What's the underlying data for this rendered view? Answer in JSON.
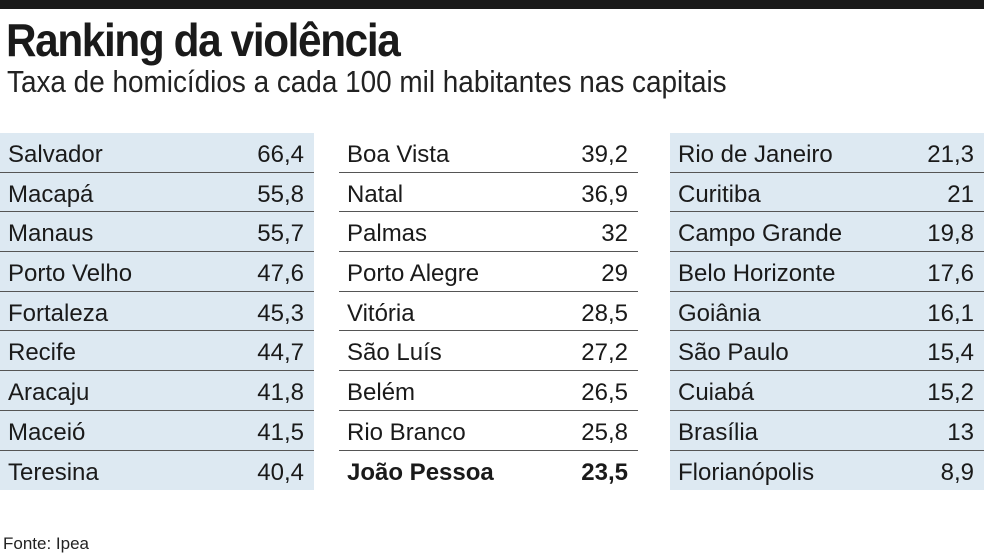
{
  "title": "Ranking da violência",
  "subtitle": "Taxa de homicídios a cada 100 mil habitantes nas capitais",
  "source": "Fonte: Ipea",
  "colors": {
    "shade": "#dde9f2",
    "rule": "#555555",
    "topbar": "#1a1a1a"
  },
  "chart_data": {
    "type": "table",
    "title": "Ranking da violência",
    "subtitle": "Taxa de homicídios a cada 100 mil habitantes nas capitais",
    "highlight": "João Pessoa",
    "columns": [
      [
        {
          "city": "Salvador",
          "value": "66,4"
        },
        {
          "city": "Macapá",
          "value": "55,8"
        },
        {
          "city": "Manaus",
          "value": "55,7"
        },
        {
          "city": "Porto Velho",
          "value": "47,6"
        },
        {
          "city": "Fortaleza",
          "value": "45,3"
        },
        {
          "city": "Recife",
          "value": "44,7"
        },
        {
          "city": "Aracaju",
          "value": "41,8"
        },
        {
          "city": "Maceió",
          "value": "41,5"
        },
        {
          "city": "Teresina",
          "value": "40,4"
        }
      ],
      [
        {
          "city": "Boa Vista",
          "value": "39,2"
        },
        {
          "city": "Natal",
          "value": "36,9"
        },
        {
          "city": "Palmas",
          "value": "32"
        },
        {
          "city": "Porto Alegre",
          "value": "29"
        },
        {
          "city": "Vitória",
          "value": "28,5"
        },
        {
          "city": "São Luís",
          "value": "27,2"
        },
        {
          "city": "Belém",
          "value": "26,5"
        },
        {
          "city": "Rio Branco",
          "value": "25,8"
        },
        {
          "city": "João Pessoa",
          "value": "23,5"
        }
      ],
      [
        {
          "city": "Rio de Janeiro",
          "value": "21,3"
        },
        {
          "city": "Curitiba",
          "value": "21"
        },
        {
          "city": "Campo Grande",
          "value": "19,8"
        },
        {
          "city": "Belo Horizonte",
          "value": "17,6"
        },
        {
          "city": "Goiânia",
          "value": "16,1"
        },
        {
          "city": "São Paulo",
          "value": "15,4"
        },
        {
          "city": "Cuiabá",
          "value": "15,2"
        },
        {
          "city": "Brasília",
          "value": "13"
        },
        {
          "city": "Florianópolis",
          "value": "8,9"
        }
      ]
    ]
  }
}
